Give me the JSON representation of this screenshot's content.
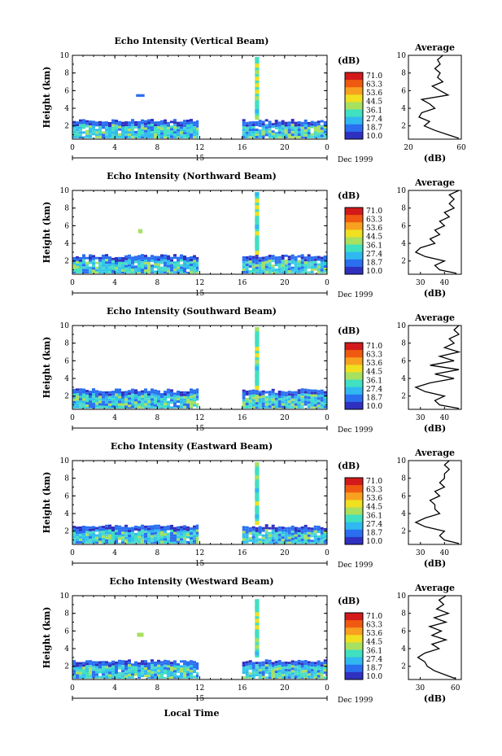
{
  "figure": {
    "xlabel": "Local Time",
    "date_label": "Dec 1999",
    "day_label": "15",
    "colorbar_unit": "(dB)",
    "colorbar_ticks": [
      "71.0",
      "63.3",
      "53.6",
      "44.5",
      "36.1",
      "27.4",
      "18.7",
      "10.0"
    ],
    "colorbar_colors": [
      "#d21a1a",
      "#f05a10",
      "#f8a020",
      "#f0e020",
      "#a8e060",
      "#40e0c0",
      "#30b8f0",
      "#2a6ff0",
      "#3030c0"
    ],
    "average_title": "Average",
    "average_xlabel": "(dB)"
  },
  "chart_data": [
    {
      "type": "heatmap",
      "title": "Echo Intensity (Vertical Beam)",
      "ylabel": "Height (km)",
      "xlim": [
        0,
        24
      ],
      "ylim": [
        0.5,
        10
      ],
      "xticks": [
        "0",
        "4",
        "8",
        "12",
        "16",
        "20",
        "0"
      ],
      "yticks": [
        "2",
        "4",
        "6",
        "8",
        "10"
      ],
      "echo_regions": [
        {
          "t0": 0,
          "t1": 11.9,
          "h0": 0.6,
          "h1": 2.8
        },
        {
          "t0": 16,
          "t1": 24,
          "h0": 0.6,
          "h1": 2.8
        },
        {
          "t0": 17.2,
          "t1": 17.6,
          "h0": 3.0,
          "h1": 9.8
        },
        {
          "t0": 6.0,
          "t1": 6.8,
          "h0": 5.3,
          "h1": 5.6
        }
      ],
      "average": {
        "xlim": [
          20,
          60
        ],
        "xticks": [
          "20",
          "60"
        ],
        "height": [
          0.6,
          1.0,
          1.5,
          2.0,
          2.5,
          3.0,
          3.5,
          4.0,
          4.5,
          5.0,
          5.5,
          6.0,
          6.5,
          7.0,
          7.5,
          8.0,
          8.5,
          9.0,
          9.5,
          10.0
        ],
        "db": [
          58,
          50,
          40,
          32,
          36,
          28,
          30,
          40,
          36,
          30,
          50,
          44,
          38,
          46,
          42,
          44,
          40,
          44,
          42,
          46
        ]
      }
    },
    {
      "type": "heatmap",
      "title": "Echo Intensity (Northward Beam)",
      "ylabel": "Height (km)",
      "xlim": [
        0,
        24
      ],
      "ylim": [
        0.5,
        10
      ],
      "xticks": [
        "0",
        "4",
        "8",
        "12",
        "16",
        "20",
        "0"
      ],
      "yticks": [
        "2",
        "4",
        "6",
        "8",
        "10"
      ],
      "echo_regions": [
        {
          "t0": 0,
          "t1": 11.9,
          "h0": 0.6,
          "h1": 2.8
        },
        {
          "t0": 16,
          "t1": 24,
          "h0": 0.6,
          "h1": 2.8
        },
        {
          "t0": 17.2,
          "t1": 17.6,
          "h0": 3.0,
          "h1": 9.8
        },
        {
          "t0": 6.2,
          "t1": 6.6,
          "h0": 5.4,
          "h1": 5.6
        }
      ],
      "average": {
        "xlim": [
          25,
          47
        ],
        "xticks": [
          "30",
          "40"
        ],
        "height": [
          0.6,
          1.0,
          1.5,
          2.0,
          2.5,
          3.0,
          3.5,
          4.0,
          4.5,
          5.0,
          5.5,
          6.0,
          6.5,
          7.0,
          7.5,
          8.0,
          8.5,
          9.0,
          9.5,
          10.0
        ],
        "db": [
          45,
          38,
          36,
          40,
          32,
          28,
          30,
          36,
          34,
          38,
          36,
          40,
          38,
          42,
          40,
          44,
          42,
          44,
          42,
          46
        ]
      }
    },
    {
      "type": "heatmap",
      "title": "Echo Intensity (Southward Beam)",
      "ylabel": "Height (km)",
      "xlim": [
        0,
        24
      ],
      "ylim": [
        0.5,
        10
      ],
      "xticks": [
        "0",
        "4",
        "8",
        "12",
        "16",
        "20",
        "0"
      ],
      "yticks": [
        "2",
        "4",
        "6",
        "8",
        "10"
      ],
      "echo_regions": [
        {
          "t0": 0,
          "t1": 11.9,
          "h0": 0.6,
          "h1": 2.9
        },
        {
          "t0": 16,
          "t1": 24,
          "h0": 0.6,
          "h1": 2.9
        },
        {
          "t0": 17.2,
          "t1": 17.6,
          "h0": 3.0,
          "h1": 9.8
        }
      ],
      "average": {
        "xlim": [
          25,
          47
        ],
        "xticks": [
          "30",
          "40"
        ],
        "height": [
          0.6,
          1.0,
          1.5,
          2.0,
          2.5,
          3.0,
          3.5,
          4.0,
          4.5,
          5.0,
          5.5,
          6.0,
          6.5,
          7.0,
          7.5,
          8.0,
          8.5,
          9.0,
          9.5,
          10.0
        ],
        "db": [
          46,
          38,
          36,
          40,
          32,
          28,
          34,
          44,
          36,
          46,
          34,
          44,
          38,
          46,
          40,
          44,
          42,
          46,
          44,
          46
        ]
      }
    },
    {
      "type": "heatmap",
      "title": "Echo Intensity (Eastward Beam)",
      "ylabel": "Height (km)",
      "xlim": [
        0,
        24
      ],
      "ylim": [
        0.5,
        10
      ],
      "xticks": [
        "0",
        "4",
        "8",
        "12",
        "16",
        "20",
        "0"
      ],
      "yticks": [
        "2",
        "4",
        "6",
        "8",
        "10"
      ],
      "echo_regions": [
        {
          "t0": 0,
          "t1": 11.9,
          "h0": 0.6,
          "h1": 2.8
        },
        {
          "t0": 16,
          "t1": 24,
          "h0": 0.6,
          "h1": 2.8
        },
        {
          "t0": 17.2,
          "t1": 17.6,
          "h0": 3.0,
          "h1": 9.8
        }
      ],
      "average": {
        "xlim": [
          25,
          47
        ],
        "xticks": [
          "30",
          "40"
        ],
        "height": [
          0.6,
          1.0,
          1.5,
          2.0,
          2.5,
          3.0,
          3.5,
          4.0,
          4.5,
          5.0,
          5.5,
          6.0,
          6.5,
          7.0,
          7.5,
          8.0,
          8.5,
          9.0,
          9.5,
          10.0
        ],
        "db": [
          46,
          40,
          38,
          40,
          32,
          28,
          32,
          38,
          36,
          36,
          34,
          38,
          36,
          40,
          38,
          40,
          40,
          42,
          40,
          42
        ]
      }
    },
    {
      "type": "heatmap",
      "title": "Echo Intensity (Westward Beam)",
      "ylabel": "Height (km)",
      "xlim": [
        0,
        24
      ],
      "ylim": [
        0.5,
        10
      ],
      "xticks": [
        "0",
        "4",
        "8",
        "12",
        "16",
        "20",
        "0"
      ],
      "yticks": [
        "2",
        "4",
        "6",
        "8",
        "10"
      ],
      "echo_regions": [
        {
          "t0": 0,
          "t1": 11.9,
          "h0": 0.6,
          "h1": 2.8
        },
        {
          "t0": 16,
          "t1": 24,
          "h0": 0.6,
          "h1": 2.8
        },
        {
          "t0": 17.2,
          "t1": 17.6,
          "h0": 3.0,
          "h1": 9.6
        },
        {
          "t0": 6.1,
          "t1": 6.7,
          "h0": 5.4,
          "h1": 5.8
        }
      ],
      "average": {
        "xlim": [
          20,
          65
        ],
        "xticks": [
          "30",
          "60"
        ],
        "height": [
          0.6,
          1.0,
          1.5,
          2.0,
          2.5,
          3.0,
          3.5,
          4.0,
          4.5,
          5.0,
          5.5,
          6.0,
          6.5,
          7.0,
          7.5,
          8.0,
          8.5,
          9.0,
          9.5,
          10.0
        ],
        "db": [
          60,
          52,
          42,
          36,
          34,
          28,
          34,
          46,
          40,
          52,
          40,
          48,
          38,
          52,
          42,
          54,
          44,
          50,
          46,
          52
        ]
      }
    }
  ]
}
